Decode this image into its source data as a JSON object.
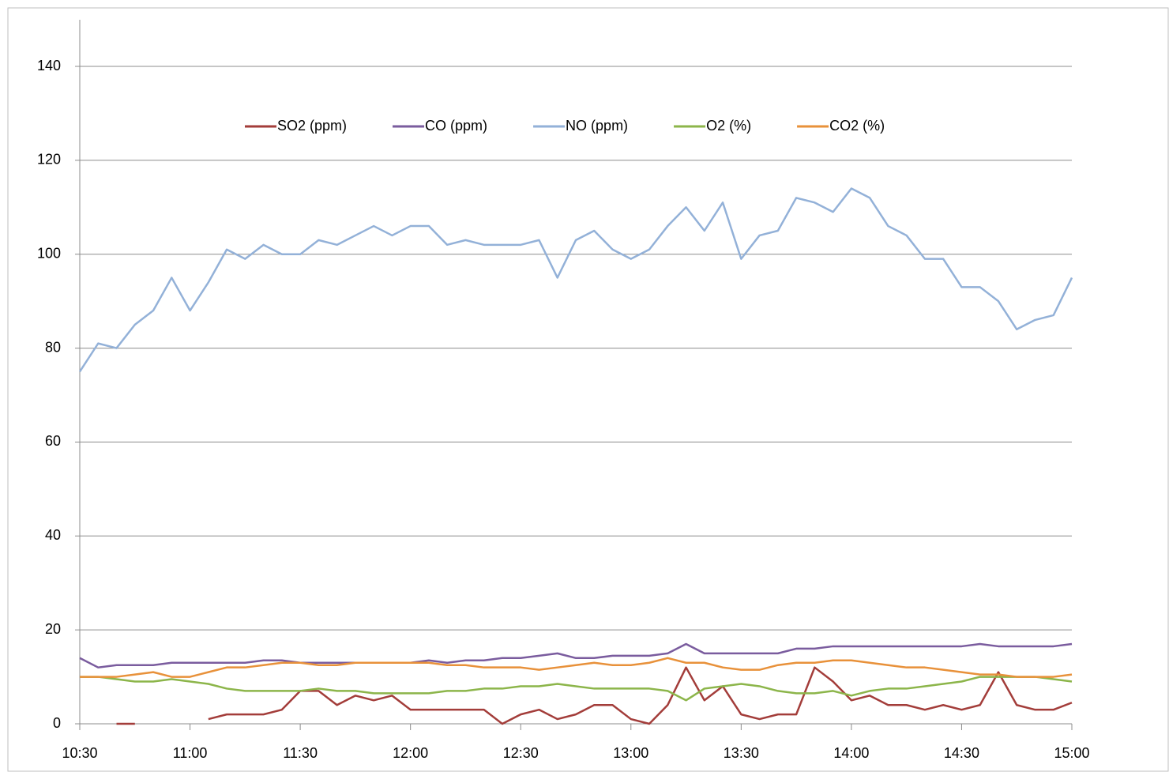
{
  "chart_data": {
    "type": "line",
    "x": [
      630,
      635,
      640,
      645,
      650,
      655,
      660,
      665,
      670,
      675,
      680,
      685,
      690,
      695,
      700,
      705,
      710,
      715,
      720,
      725,
      730,
      735,
      740,
      745,
      750,
      755,
      760,
      765,
      770,
      775,
      780,
      785,
      790,
      795,
      800,
      805,
      810,
      815,
      820,
      825,
      830,
      835,
      840,
      845,
      850,
      855,
      860,
      865,
      870,
      875,
      880,
      885,
      890,
      895,
      900
    ],
    "series": [
      {
        "name": "SO2 (ppm)",
        "color": "#a33d3a",
        "values": [
          null,
          null,
          0,
          0,
          null,
          null,
          null,
          1,
          2,
          2,
          2,
          3,
          7,
          7,
          4,
          6,
          5,
          6,
          3,
          3,
          3,
          3,
          3,
          0,
          2,
          3,
          1,
          2,
          4,
          4,
          1,
          0,
          4,
          12,
          5,
          8,
          2,
          1,
          2,
          2,
          12,
          9,
          5,
          6,
          4,
          4,
          3,
          4,
          3,
          4,
          11,
          4,
          3,
          3,
          4.5
        ]
      },
      {
        "name": "CO (ppm)",
        "color": "#7a5c9e",
        "values": [
          14,
          12,
          12.5,
          12.5,
          12.5,
          13,
          13,
          13,
          13,
          13,
          13.5,
          13.5,
          13,
          13,
          13,
          13,
          13,
          13,
          13,
          13.5,
          13,
          13.5,
          13.5,
          14,
          14,
          14.5,
          15,
          14,
          14,
          14.5,
          14.5,
          14.5,
          15,
          17,
          15,
          15,
          15,
          15,
          15,
          16,
          16,
          16.5,
          16.5,
          16.5,
          16.5,
          16.5,
          16.5,
          16.5,
          16.5,
          17,
          16.5,
          16.5,
          16.5,
          16.5,
          17
        ]
      },
      {
        "name": "NO (ppm)",
        "color": "#93b1d8",
        "values": [
          75,
          81,
          80,
          85,
          88,
          95,
          88,
          94,
          101,
          99,
          102,
          100,
          100,
          103,
          102,
          104,
          106,
          104,
          106,
          106,
          102,
          103,
          102,
          102,
          102,
          103,
          95,
          103,
          105,
          101,
          99,
          101,
          106,
          110,
          105,
          111,
          99,
          104,
          105,
          112,
          111,
          109,
          114,
          112,
          106,
          104,
          99,
          99,
          93,
          93,
          90,
          84,
          86,
          87,
          95
        ]
      },
      {
        "name": "O2 (%)",
        "color": "#8cb54a",
        "values": [
          10,
          10,
          9.5,
          9,
          9,
          9.5,
          9,
          8.5,
          7.5,
          7,
          7,
          7,
          7,
          7.5,
          7,
          7,
          6.5,
          6.5,
          6.5,
          6.5,
          7,
          7,
          7.5,
          7.5,
          8,
          8,
          8.5,
          8,
          7.5,
          7.5,
          7.5,
          7.5,
          7,
          5,
          7.5,
          8,
          8.5,
          8,
          7,
          6.5,
          6.5,
          7,
          6,
          7,
          7.5,
          7.5,
          8,
          8.5,
          9,
          10,
          10,
          10,
          10,
          9.5,
          9
        ]
      },
      {
        "name": "CO2 (%)",
        "color": "#e8913a",
        "values": [
          10,
          10,
          10,
          10.5,
          11,
          10,
          10,
          11,
          12,
          12,
          12.5,
          13,
          13,
          12.5,
          12.5,
          13,
          13,
          13,
          13,
          13,
          12.5,
          12.5,
          12,
          12,
          12,
          11.5,
          12,
          12.5,
          13,
          12.5,
          12.5,
          13,
          14,
          13,
          13,
          12,
          11.5,
          11.5,
          12.5,
          13,
          13,
          13.5,
          13.5,
          13,
          12.5,
          12,
          12,
          11.5,
          11,
          10.5,
          10.5,
          10,
          10,
          10,
          10.5
        ]
      }
    ],
    "xlim": [
      630,
      900
    ],
    "xticks": [
      {
        "value": 630,
        "label": "10:30"
      },
      {
        "value": 660,
        "label": "11:00"
      },
      {
        "value": 690,
        "label": "11:30"
      },
      {
        "value": 720,
        "label": "12:00"
      },
      {
        "value": 750,
        "label": "12:30"
      },
      {
        "value": 780,
        "label": "13:00"
      },
      {
        "value": 810,
        "label": "13:30"
      },
      {
        "value": 840,
        "label": "14:00"
      },
      {
        "value": 870,
        "label": "14:30"
      },
      {
        "value": 900,
        "label": "15:00"
      }
    ],
    "ylim": [
      0,
      140
    ],
    "yticks": [
      0,
      20,
      40,
      60,
      80,
      100,
      120,
      140
    ],
    "grid": true,
    "legend": "top"
  }
}
